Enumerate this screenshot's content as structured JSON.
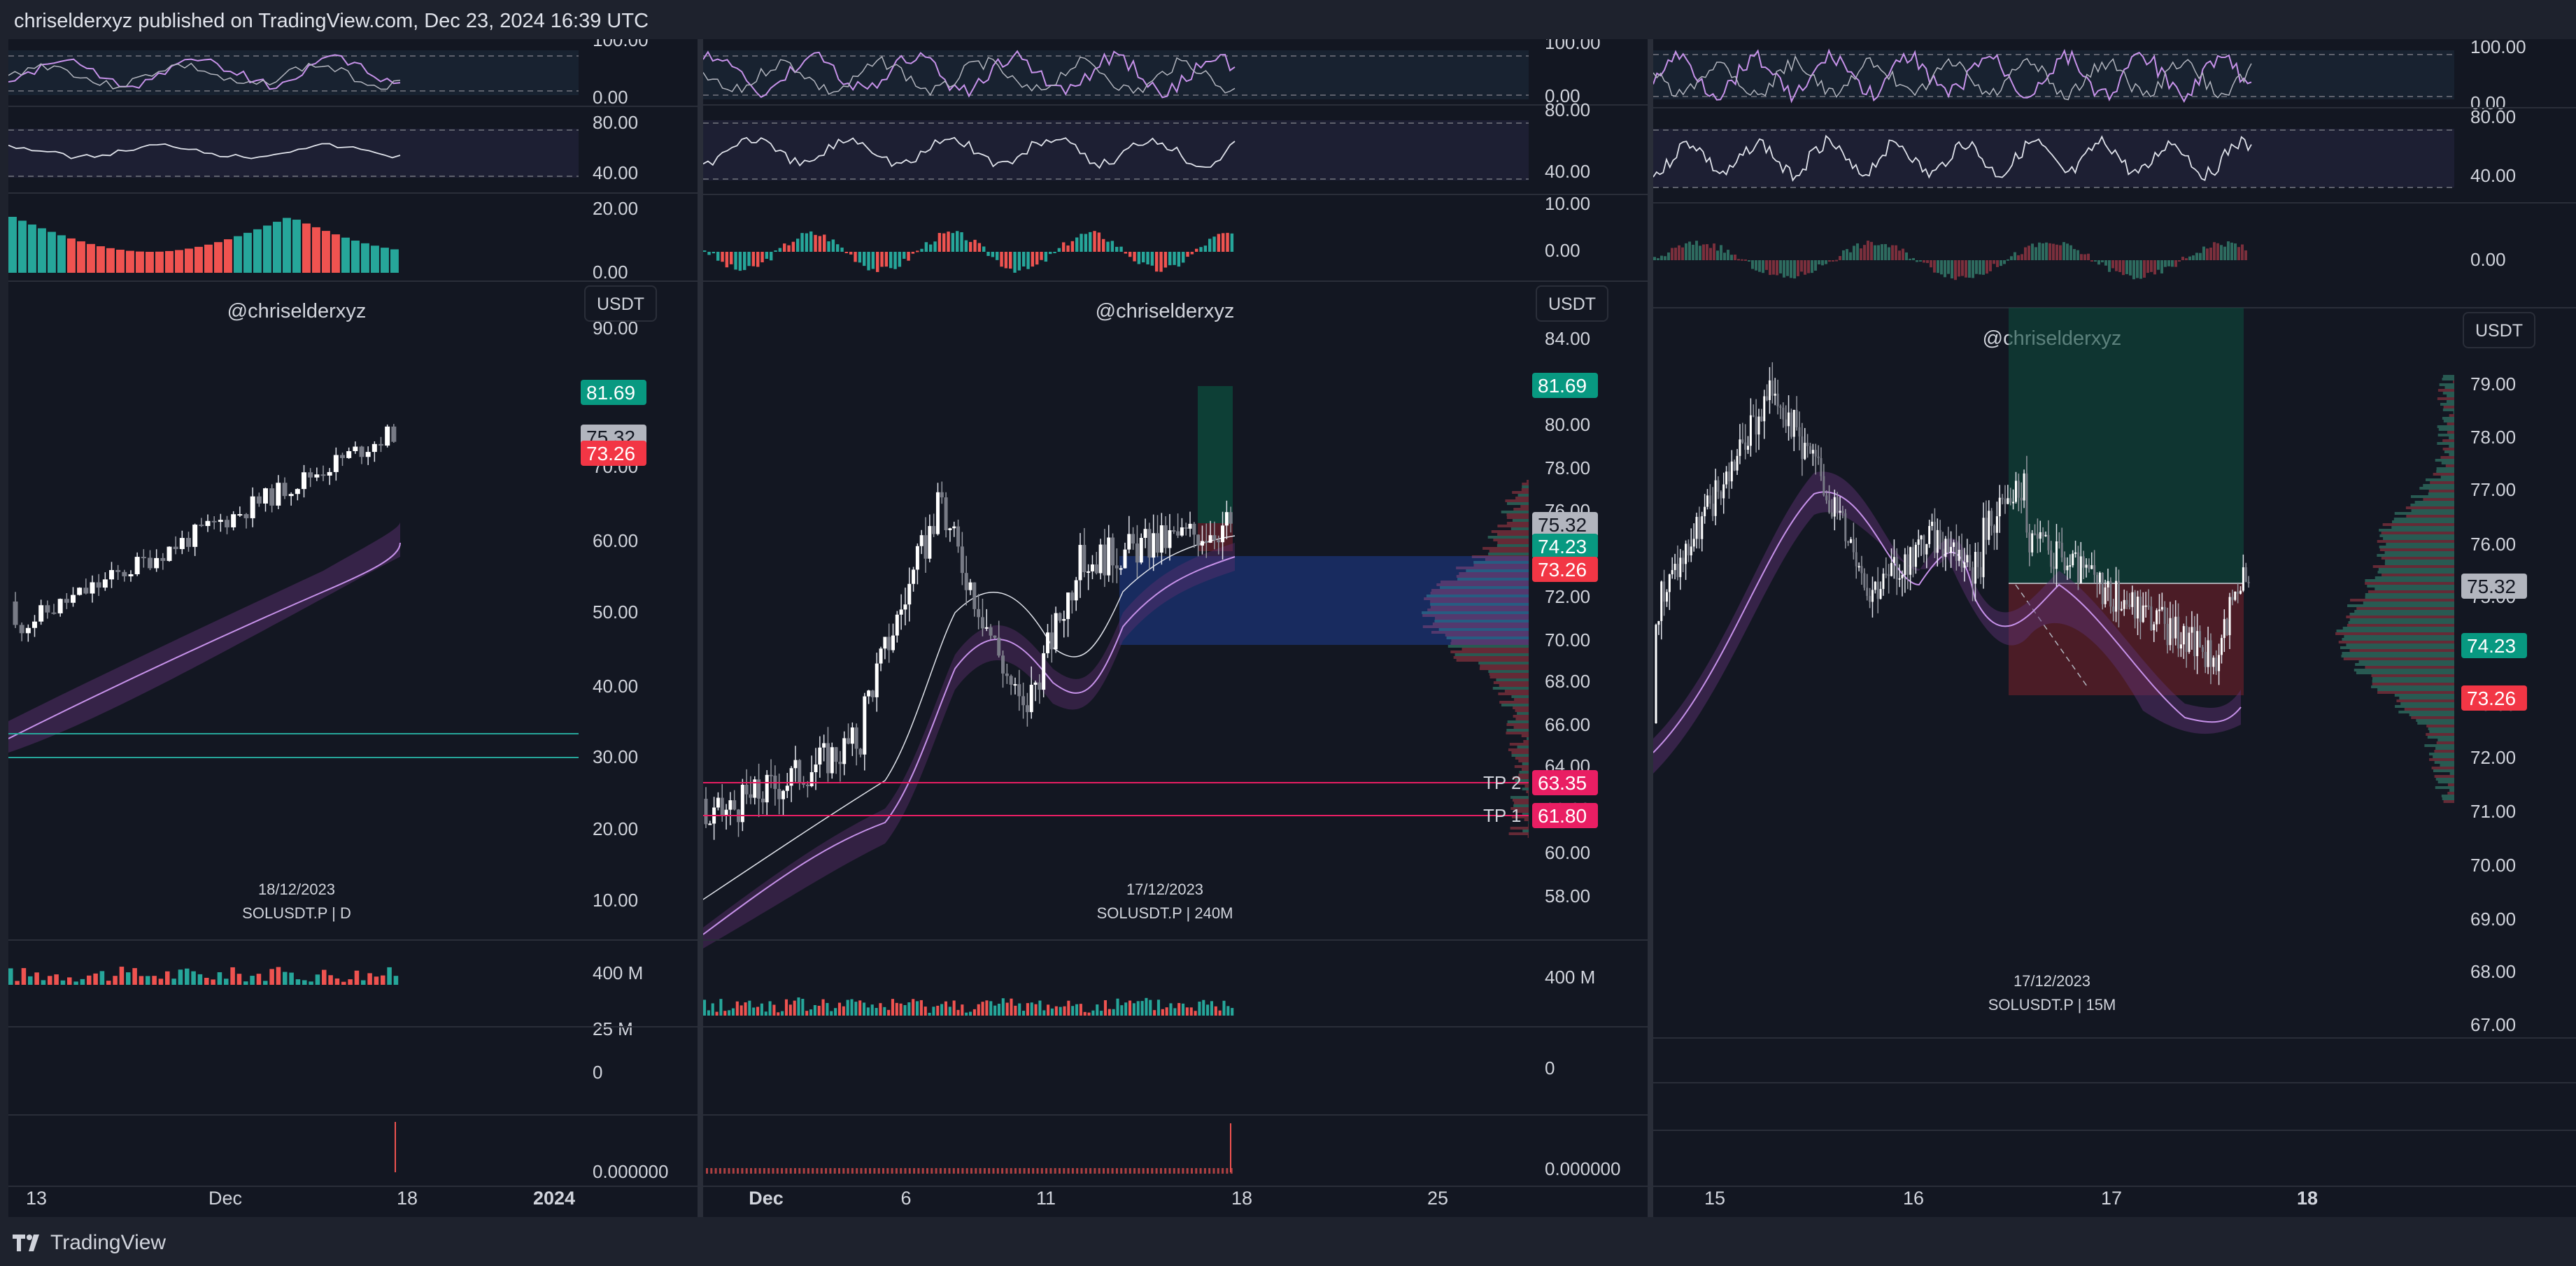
{
  "header": {
    "title": "chriselderxyz published on TradingView.com, Dec 23, 2024 16:39 UTC"
  },
  "footer": {
    "brand": "TradingView"
  },
  "colors": {
    "bg": "#131722",
    "up": "#26a69a",
    "down": "#ef5350",
    "price_red": "#f23645",
    "price_green": "#089981",
    "price_gray": "#b2b5be",
    "ema": "#c792ea",
    "blue_zone": "#2962ff"
  },
  "panels": [
    {
      "id": "daily",
      "watermark": "@chriselderxyz",
      "currency": "USDT",
      "date_label": "18/12/2023",
      "symbol_label": "SOLUSDT.P | D",
      "stoch_ticks": [
        "100.00",
        "0.00"
      ],
      "rsi_ticks": [
        "80.00",
        "40.00"
      ],
      "macd_ticks": [
        "20.00",
        "0.00"
      ],
      "price_ticks": [
        "90.00",
        "80.00",
        "70.00",
        "60.00",
        "50.00",
        "40.00",
        "30.00",
        "20.00",
        "10.00"
      ],
      "price_labels": [
        {
          "text": "81.69",
          "kind": "green"
        },
        {
          "text": "75.32",
          "kind": "gray"
        },
        {
          "text": "73.26",
          "kind": "red"
        }
      ],
      "volume_ticks": [
        "400 M",
        "25 M",
        "0"
      ],
      "bottom_tick": "0.000000",
      "time_ticks": [
        "13",
        "Dec",
        "18",
        "2024"
      ]
    },
    {
      "id": "h4",
      "watermark": "@chriselderxyz",
      "currency": "USDT",
      "date_label": "17/12/2023",
      "symbol_label": "SOLUSDT.P | 240M",
      "stoch_ticks": [
        "100.00",
        "0.00"
      ],
      "rsi_ticks": [
        "80.00",
        "40.00"
      ],
      "macd_ticks": [
        "10.00",
        "0.00"
      ],
      "price_ticks": [
        "84.00",
        "82.00",
        "80.00",
        "78.00",
        "76.00",
        "74.00",
        "72.00",
        "70.00",
        "68.00",
        "66.00",
        "64.00",
        "62.00",
        "60.00",
        "58.00"
      ],
      "price_labels": [
        {
          "text": "81.69",
          "kind": "green"
        },
        {
          "text": "75.32",
          "kind": "gray"
        },
        {
          "text": "74.23",
          "kind": "green"
        },
        {
          "text": "73.26",
          "kind": "red"
        },
        {
          "text": "63.35",
          "kind": "pink"
        },
        {
          "text": "61.80",
          "kind": "pink"
        }
      ],
      "tp_labels": [
        "TP 2",
        "TP 1"
      ],
      "volume_ticks": [
        "400 M",
        "0"
      ],
      "bottom_tick": "0.000000",
      "time_ticks": [
        "Dec",
        "6",
        "11",
        "18",
        "25"
      ]
    },
    {
      "id": "m15",
      "watermark": "@chriselderxyz",
      "currency": "USDT",
      "date_label": "17/12/2023",
      "symbol_label": "SOLUSDT.P | 15M",
      "stoch_ticks": [
        "100.00",
        "0.00"
      ],
      "rsi_ticks": [
        "80.00",
        "40.00"
      ],
      "macd_ticks": [
        "0.00"
      ],
      "price_ticks": [
        "79.00",
        "78.00",
        "77.00",
        "76.00",
        "75.00",
        "74.00",
        "73.00",
        "72.00",
        "71.00",
        "70.00",
        "69.00",
        "68.00",
        "67.00"
      ],
      "price_labels": [
        {
          "text": "75.32",
          "kind": "gray"
        },
        {
          "text": "74.23",
          "kind": "green"
        },
        {
          "text": "73.26",
          "kind": "red"
        }
      ],
      "time_ticks": [
        "15",
        "16",
        "17",
        "18"
      ]
    }
  ]
}
